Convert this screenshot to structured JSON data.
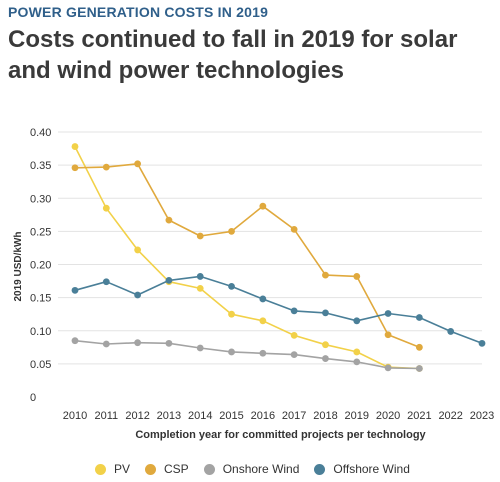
{
  "header": {
    "kicker": "POWER GENERATION COSTS IN 2019",
    "title": "Costs continued to fall in 2019 for solar and wind power technologies"
  },
  "chart_data": {
    "type": "line",
    "title": "Costs continued to fall in 2019 for solar and wind power technologies",
    "subtitle": "POWER GENERATION COSTS IN 2019",
    "xlabel": "Completion year for committed projects per technology",
    "ylabel": "2019 USD/kWh",
    "x": [
      2010,
      2011,
      2012,
      2013,
      2014,
      2015,
      2016,
      2017,
      2018,
      2019,
      2020,
      2021,
      2022,
      2023
    ],
    "yticks": [
      {
        "value": 0,
        "label": "0"
      },
      {
        "value": 0.05,
        "label": "0.05"
      },
      {
        "value": 0.1,
        "label": "0.10"
      },
      {
        "value": 0.15,
        "label": "0.15"
      },
      {
        "value": 0.2,
        "label": "0.20"
      },
      {
        "value": 0.25,
        "label": "0.25"
      },
      {
        "value": 0.3,
        "label": "0.30"
      },
      {
        "value": 0.35,
        "label": "0.35"
      },
      {
        "value": 0.4,
        "label": "0.40"
      }
    ],
    "ylim": [
      0,
      0.4
    ],
    "grid": true,
    "legend_position": "bottom",
    "series": [
      {
        "name": "PV",
        "color": "#f2d149",
        "values": [
          0.378,
          0.285,
          0.222,
          0.174,
          0.164,
          0.125,
          0.115,
          0.093,
          0.079,
          0.068,
          0.045,
          0.043,
          null,
          null
        ]
      },
      {
        "name": "CSP",
        "color": "#e0a93d",
        "values": [
          0.346,
          0.347,
          0.352,
          0.267,
          0.243,
          0.25,
          0.288,
          0.253,
          0.184,
          0.182,
          0.094,
          0.075,
          null,
          null
        ]
      },
      {
        "name": "Onshore Wind",
        "color": "#a3a3a3",
        "values": [
          0.085,
          0.08,
          0.082,
          0.081,
          0.074,
          0.068,
          0.066,
          0.064,
          0.058,
          0.053,
          0.044,
          0.043,
          null,
          null
        ]
      },
      {
        "name": "Offshore Wind",
        "color": "#4a7f98",
        "values": [
          0.161,
          0.174,
          0.154,
          0.176,
          0.182,
          0.167,
          0.148,
          0.13,
          0.127,
          0.115,
          0.126,
          0.12,
          0.099,
          0.081
        ]
      }
    ]
  }
}
